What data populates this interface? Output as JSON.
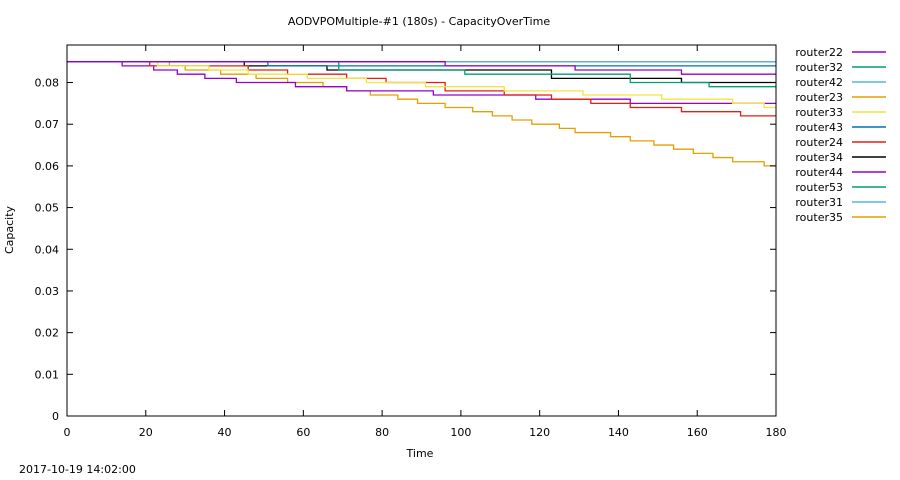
{
  "footer_timestamp": "2017-10-19 14:02:00",
  "chart_data": {
    "type": "line",
    "title": "AODVPOMultiple-#1 (180s) - CapacityOverTime",
    "xlabel": "Time",
    "ylabel": "Capacity",
    "xlim": [
      0,
      180
    ],
    "ylim": [
      0,
      0.089
    ],
    "x_ticks": [
      0,
      20,
      40,
      60,
      80,
      100,
      120,
      140,
      160,
      180
    ],
    "y_ticks": [
      0,
      0.01,
      0.02,
      0.03,
      0.04,
      0.05,
      0.06,
      0.07,
      0.08
    ],
    "grid": false,
    "legend_position": "right",
    "series": [
      {
        "name": "router22",
        "color": "#9400d3",
        "steps": [
          [
            0,
            0.085
          ],
          [
            95,
            0.085
          ],
          [
            96,
            0.084
          ],
          [
            128,
            0.084
          ],
          [
            129,
            0.083
          ],
          [
            155,
            0.083
          ],
          [
            156,
            0.082
          ],
          [
            180,
            0.082
          ]
        ]
      },
      {
        "name": "router32",
        "color": "#009e73",
        "steps": [
          [
            0,
            0.085
          ],
          [
            68,
            0.085
          ],
          [
            69,
            0.083
          ],
          [
            100,
            0.083
          ],
          [
            101,
            0.082
          ],
          [
            142,
            0.082
          ],
          [
            143,
            0.08
          ],
          [
            162,
            0.08
          ],
          [
            163,
            0.079
          ],
          [
            180,
            0.079
          ]
        ]
      },
      {
        "name": "router42",
        "color": "#56b4e9",
        "steps": [
          [
            0,
            0.085
          ],
          [
            180,
            0.085
          ]
        ]
      },
      {
        "name": "router23",
        "color": "#e69f00",
        "steps": [
          [
            0,
            0.085
          ],
          [
            180,
            0.085
          ]
        ]
      },
      {
        "name": "router33",
        "color": "#f0e442",
        "steps": [
          [
            0,
            0.085
          ],
          [
            22,
            0.085
          ],
          [
            23,
            0.084
          ],
          [
            35,
            0.084
          ],
          [
            36,
            0.083
          ],
          [
            45,
            0.083
          ],
          [
            46,
            0.082
          ],
          [
            60,
            0.082
          ],
          [
            61,
            0.081
          ],
          [
            75,
            0.081
          ],
          [
            76,
            0.08
          ],
          [
            90,
            0.08
          ],
          [
            91,
            0.079
          ],
          [
            110,
            0.079
          ],
          [
            111,
            0.078
          ],
          [
            130,
            0.078
          ],
          [
            131,
            0.077
          ],
          [
            150,
            0.077
          ],
          [
            151,
            0.076
          ],
          [
            168,
            0.076
          ],
          [
            169,
            0.075
          ],
          [
            176,
            0.075
          ],
          [
            177,
            0.074
          ],
          [
            180,
            0.074
          ]
        ]
      },
      {
        "name": "router43",
        "color": "#0072b2",
        "steps": [
          [
            0,
            0.085
          ],
          [
            50,
            0.085
          ],
          [
            51,
            0.084
          ],
          [
            180,
            0.084
          ]
        ]
      },
      {
        "name": "router24",
        "color": "#e51e10",
        "steps": [
          [
            0,
            0.085
          ],
          [
            20,
            0.085
          ],
          [
            21,
            0.084
          ],
          [
            45,
            0.084
          ],
          [
            46,
            0.083
          ],
          [
            55,
            0.083
          ],
          [
            56,
            0.082
          ],
          [
            70,
            0.082
          ],
          [
            71,
            0.081
          ],
          [
            80,
            0.081
          ],
          [
            81,
            0.08
          ],
          [
            95,
            0.08
          ],
          [
            96,
            0.078
          ],
          [
            110,
            0.078
          ],
          [
            111,
            0.077
          ],
          [
            122,
            0.077
          ],
          [
            123,
            0.076
          ],
          [
            132,
            0.076
          ],
          [
            133,
            0.075
          ],
          [
            142,
            0.075
          ],
          [
            143,
            0.074
          ],
          [
            155,
            0.074
          ],
          [
            156,
            0.073
          ],
          [
            170,
            0.073
          ],
          [
            171,
            0.072
          ],
          [
            180,
            0.072
          ]
        ]
      },
      {
        "name": "router34",
        "color": "#000000",
        "steps": [
          [
            0,
            0.085
          ],
          [
            44,
            0.085
          ],
          [
            45,
            0.084
          ],
          [
            65,
            0.084
          ],
          [
            66,
            0.083
          ],
          [
            122,
            0.083
          ],
          [
            123,
            0.081
          ],
          [
            155,
            0.081
          ],
          [
            156,
            0.08
          ],
          [
            180,
            0.08
          ]
        ]
      },
      {
        "name": "router44",
        "color": "#9400d3",
        "steps": [
          [
            0,
            0.085
          ],
          [
            13,
            0.085
          ],
          [
            14,
            0.084
          ],
          [
            21,
            0.084
          ],
          [
            22,
            0.083
          ],
          [
            27,
            0.083
          ],
          [
            28,
            0.082
          ],
          [
            34,
            0.082
          ],
          [
            35,
            0.081
          ],
          [
            42,
            0.081
          ],
          [
            43,
            0.08
          ],
          [
            57,
            0.08
          ],
          [
            58,
            0.079
          ],
          [
            70,
            0.079
          ],
          [
            71,
            0.078
          ],
          [
            92,
            0.078
          ],
          [
            93,
            0.077
          ],
          [
            118,
            0.077
          ],
          [
            119,
            0.076
          ],
          [
            142,
            0.076
          ],
          [
            143,
            0.075
          ],
          [
            180,
            0.075
          ]
        ]
      },
      {
        "name": "router53",
        "color": "#009e73",
        "steps": [
          [
            0,
            0.085
          ],
          [
            180,
            0.085
          ]
        ]
      },
      {
        "name": "router31",
        "color": "#56b4e9",
        "steps": [
          [
            0,
            0.085
          ],
          [
            180,
            0.085
          ]
        ]
      },
      {
        "name": "router35",
        "color": "#e69f00",
        "steps": [
          [
            0,
            0.085
          ],
          [
            25,
            0.085
          ],
          [
            26,
            0.084
          ],
          [
            29,
            0.084
          ],
          [
            30,
            0.083
          ],
          [
            38,
            0.083
          ],
          [
            39,
            0.082
          ],
          [
            47,
            0.082
          ],
          [
            48,
            0.081
          ],
          [
            55,
            0.081
          ],
          [
            56,
            0.08
          ],
          [
            64,
            0.08
          ],
          [
            65,
            0.079
          ],
          [
            70,
            0.079
          ],
          [
            71,
            0.078
          ],
          [
            76,
            0.078
          ],
          [
            77,
            0.077
          ],
          [
            83,
            0.077
          ],
          [
            84,
            0.076
          ],
          [
            88,
            0.076
          ],
          [
            89,
            0.075
          ],
          [
            95,
            0.075
          ],
          [
            96,
            0.074
          ],
          [
            102,
            0.074
          ],
          [
            103,
            0.073
          ],
          [
            107,
            0.073
          ],
          [
            108,
            0.072
          ],
          [
            112,
            0.072
          ],
          [
            113,
            0.071
          ],
          [
            117,
            0.071
          ],
          [
            118,
            0.07
          ],
          [
            124,
            0.07
          ],
          [
            125,
            0.069
          ],
          [
            128,
            0.069
          ],
          [
            129,
            0.068
          ],
          [
            137,
            0.068
          ],
          [
            138,
            0.067
          ],
          [
            142,
            0.067
          ],
          [
            143,
            0.066
          ],
          [
            148,
            0.066
          ],
          [
            149,
            0.065
          ],
          [
            153,
            0.065
          ],
          [
            154,
            0.064
          ],
          [
            158,
            0.064
          ],
          [
            159,
            0.063
          ],
          [
            163,
            0.063
          ],
          [
            164,
            0.062
          ],
          [
            168,
            0.062
          ],
          [
            169,
            0.061
          ],
          [
            176,
            0.061
          ],
          [
            177,
            0.06
          ],
          [
            180,
            0.06
          ]
        ]
      }
    ]
  }
}
